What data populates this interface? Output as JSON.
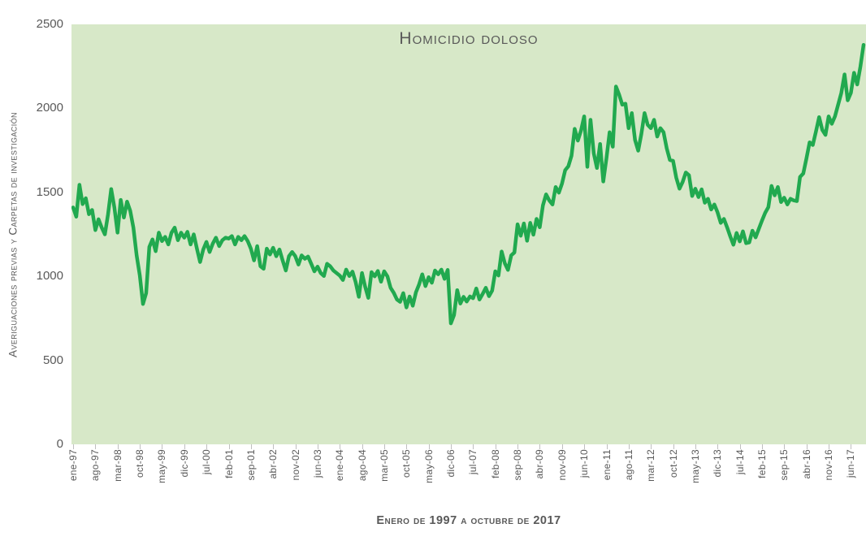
{
  "chart_data": {
    "type": "line",
    "title": "Homicidio doloso",
    "xlabel": "Enero de 1997 a octubre de 2017",
    "ylabel": "Averiguaciones previas y Carpetas de investigación",
    "ylim": [
      0,
      2500
    ],
    "y_ticks": [
      0,
      500,
      1000,
      1500,
      2000,
      2500
    ],
    "grid": false,
    "legend": "none",
    "plot_bg_color": "#d7e8c8",
    "line_color": "#21a94f",
    "text_color": "#595959",
    "tick_color": "#bfbfbf",
    "x_tick_interval_months": 7,
    "x_tick_labels": [
      "ene-97",
      "ago-97",
      "mar-98",
      "oct-98",
      "may-99",
      "dic-99",
      "jul-00",
      "feb-01",
      "sep-01",
      "abr-02",
      "nov-02",
      "jun-03",
      "ene-04",
      "ago-04",
      "mar-05",
      "oct-05",
      "may-06",
      "dic-06",
      "jul-07",
      "feb-08",
      "sep-08",
      "abr-09",
      "nov-09",
      "jun-10",
      "ene-11",
      "ago-11",
      "mar-12",
      "oct-12",
      "may-13",
      "dic-13",
      "jul-14",
      "feb-15",
      "sep-15",
      "abr-16",
      "nov-16",
      "jun-17"
    ],
    "x_range": "monthly from ene-97 to oct-17",
    "series": [
      {
        "name": "Homicidio doloso",
        "values": [
          1410,
          1355,
          1545,
          1430,
          1465,
          1370,
          1395,
          1275,
          1340,
          1290,
          1250,
          1370,
          1520,
          1410,
          1260,
          1455,
          1350,
          1445,
          1390,
          1290,
          1125,
          1005,
          835,
          900,
          1175,
          1220,
          1150,
          1260,
          1210,
          1235,
          1190,
          1260,
          1290,
          1215,
          1260,
          1230,
          1265,
          1190,
          1250,
          1165,
          1085,
          1160,
          1205,
          1145,
          1195,
          1230,
          1180,
          1215,
          1230,
          1225,
          1240,
          1190,
          1235,
          1215,
          1240,
          1210,
          1165,
          1095,
          1180,
          1060,
          1045,
          1165,
          1130,
          1170,
          1120,
          1160,
          1095,
          1035,
          1120,
          1145,
          1120,
          1070,
          1125,
          1105,
          1118,
          1075,
          1030,
          1058,
          1020,
          1002,
          1075,
          1060,
          1035,
          1020,
          1005,
          978,
          1040,
          1002,
          1028,
          965,
          878,
          1020,
          938,
          872,
          1025,
          1000,
          1032,
          968,
          1030,
          1000,
          932,
          902,
          862,
          848,
          900,
          815,
          880,
          825,
          905,
          952,
          1012,
          942,
          995,
          962,
          1035,
          1012,
          1040,
          985,
          1038,
          720,
          770,
          918,
          838,
          878,
          850,
          880,
          870,
          928,
          862,
          895,
          932,
          882,
          915,
          1030,
          1005,
          1148,
          1078,
          1038,
          1125,
          1142,
          1310,
          1242,
          1315,
          1212,
          1318,
          1248,
          1342,
          1292,
          1422,
          1488,
          1452,
          1428,
          1532,
          1498,
          1552,
          1632,
          1655,
          1718,
          1878,
          1808,
          1868,
          1952,
          1652,
          1932,
          1732,
          1645,
          1788,
          1565,
          1702,
          1858,
          1772,
          2130,
          2082,
          2022,
          2028,
          1882,
          1972,
          1812,
          1748,
          1848,
          1972,
          1902,
          1882,
          1932,
          1832,
          1882,
          1858,
          1762,
          1692,
          1688,
          1588,
          1522,
          1562,
          1618,
          1602,
          1478,
          1522,
          1472,
          1518,
          1438,
          1462,
          1398,
          1428,
          1382,
          1318,
          1342,
          1292,
          1238,
          1188,
          1258,
          1208,
          1268,
          1198,
          1202,
          1272,
          1232,
          1282,
          1332,
          1378,
          1412,
          1538,
          1482,
          1532,
          1442,
          1468,
          1428,
          1462,
          1452,
          1448,
          1592,
          1612,
          1702,
          1798,
          1782,
          1862,
          1948,
          1872,
          1842,
          1952,
          1908,
          1952,
          2022,
          2092,
          2202,
          2048,
          2092,
          2212,
          2142,
          2248,
          2378
        ]
      }
    ]
  }
}
